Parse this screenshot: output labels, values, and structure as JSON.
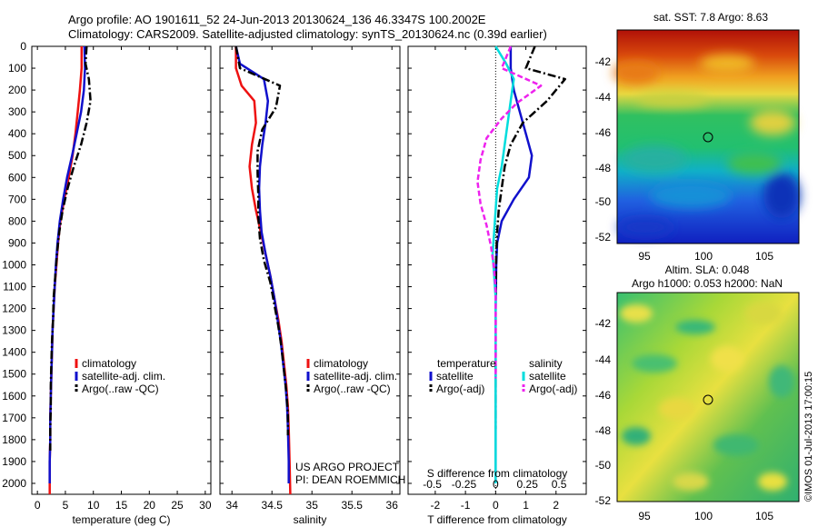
{
  "title": {
    "line1": "Argo profile: AO 1901611_52 24-Jun-2013 20130624_136 46.3347S 100.2002E",
    "line2": "Climatology: CARS2009. Satellite-adjusted climatology: synTS_20130624.nc (0.39d earlier)"
  },
  "colors": {
    "climatology": "#ee1111",
    "satellite_adj": "#1010cc",
    "argo": "#000000",
    "sal_satellite": "#00dddd",
    "sal_argo": "#ee22ee"
  },
  "chart_data": [
    {
      "type": "line",
      "name": "temperature-panel",
      "xlabel": "temperature (deg C)",
      "ylabel": "",
      "xlim": [
        -1,
        31
      ],
      "ylim": [
        2050,
        0
      ],
      "xticks": [
        0,
        5,
        10,
        15,
        20,
        25,
        30
      ],
      "yticks": [
        0,
        100,
        200,
        300,
        400,
        500,
        600,
        700,
        800,
        900,
        1000,
        1100,
        1200,
        1300,
        1400,
        1500,
        1600,
        1700,
        1800,
        1900,
        2000
      ],
      "legend": [
        "climatology",
        "satellite-adj. clim.",
        "Argo(..raw -QC)"
      ],
      "series": [
        {
          "name": "climatology",
          "style": "solid",
          "x": [
            7.9,
            7.9,
            7.6,
            7.2,
            6.8,
            6.3,
            5.6,
            4.8,
            4.1,
            3.7,
            3.4,
            3.1,
            2.9,
            2.7,
            2.6,
            2.5,
            2.4,
            2.3,
            2.3,
            2.2,
            2.2
          ],
          "y": [
            0,
            100,
            200,
            300,
            400,
            500,
            600,
            700,
            800,
            900,
            1000,
            1100,
            1200,
            1300,
            1400,
            1500,
            1600,
            1700,
            1800,
            1900,
            2050
          ]
        },
        {
          "name": "satellite-adj. clim.",
          "style": "solid",
          "x": [
            8.4,
            8.5,
            8.3,
            7.8,
            7.0,
            6.2,
            5.3,
            4.6,
            4.0,
            3.6,
            3.3,
            3.1,
            2.9,
            2.7,
            2.6,
            2.5,
            2.4,
            2.3,
            2.3,
            2.2,
            2.2
          ],
          "y": [
            0,
            100,
            200,
            300,
            400,
            500,
            600,
            700,
            800,
            900,
            1000,
            1100,
            1200,
            1300,
            1400,
            1500,
            1600,
            1700,
            1800,
            1900,
            2000
          ]
        },
        {
          "name": "Argo(..raw -QC)",
          "style": "dashdot",
          "x": [
            8.8,
            8.6,
            9.2,
            9.5,
            8.8,
            7.8,
            6.5,
            5.4,
            4.5,
            3.9,
            3.5,
            3.2,
            2.9,
            2.8,
            2.6,
            2.5,
            2.4,
            2.4,
            2.3,
            2.3
          ],
          "y": [
            0,
            80,
            150,
            250,
            350,
            450,
            550,
            650,
            750,
            850,
            950,
            1050,
            1150,
            1250,
            1350,
            1450,
            1550,
            1650,
            1750,
            1850
          ]
        }
      ]
    },
    {
      "type": "line",
      "name": "salinity-panel",
      "xlabel": "salinity",
      "xlim": [
        33.85,
        36.1
      ],
      "ylim": [
        2050,
        0
      ],
      "xticks": [
        34,
        34.5,
        35,
        35.5,
        36
      ],
      "legend": [
        "climatology",
        "satellite-adj. clim.",
        "Argo(..raw -QC)"
      ],
      "credits": [
        "US ARGO PROJECT",
        "PI: DEAN ROEMMICH"
      ],
      "series": [
        {
          "name": "climatology",
          "style": "solid",
          "x": [
            34.05,
            34.05,
            34.12,
            34.28,
            34.3,
            34.25,
            34.22,
            34.25,
            34.3,
            34.36,
            34.42,
            34.48,
            34.53,
            34.58,
            34.62,
            34.65,
            34.68,
            34.7,
            34.71,
            34.72,
            34.73
          ],
          "y": [
            0,
            100,
            180,
            250,
            350,
            450,
            550,
            650,
            750,
            850,
            950,
            1050,
            1150,
            1250,
            1350,
            1450,
            1550,
            1650,
            1750,
            1900,
            2050
          ]
        },
        {
          "name": "satellite-adj. clim.",
          "style": "solid",
          "x": [
            34.05,
            34.1,
            34.4,
            34.45,
            34.42,
            34.38,
            34.35,
            34.34,
            34.35,
            34.37,
            34.42,
            34.48,
            34.53,
            34.57,
            34.61,
            34.64,
            34.67,
            34.69,
            34.7,
            34.71,
            34.71
          ],
          "y": [
            0,
            80,
            150,
            250,
            350,
            450,
            550,
            650,
            750,
            850,
            950,
            1050,
            1150,
            1250,
            1350,
            1450,
            1550,
            1650,
            1750,
            1900,
            2000
          ]
        },
        {
          "name": "Argo(..raw -QC)",
          "style": "dashdot",
          "x": [
            34.05,
            34.1,
            34.6,
            34.55,
            34.38,
            34.32,
            34.32,
            34.33,
            34.33,
            34.35,
            34.4,
            34.48,
            34.53,
            34.58,
            34.62,
            34.65,
            34.68,
            34.7,
            34.7
          ],
          "y": [
            0,
            100,
            180,
            280,
            380,
            480,
            580,
            680,
            780,
            880,
            980,
            1080,
            1180,
            1280,
            1380,
            1480,
            1580,
            1680,
            1780
          ]
        }
      ]
    },
    {
      "type": "line",
      "name": "difference-panel",
      "xlabel": "T difference from climatology",
      "xlabel_top": "S difference from climatology",
      "xlim": [
        -2.9,
        3.0
      ],
      "ylim": [
        2050,
        0
      ],
      "xticks": [
        -2,
        -1,
        0,
        1,
        2
      ],
      "s_ticks": [
        -0.5,
        -0.25,
        0,
        0.25,
        0.5
      ],
      "legend_groups": [
        "temperature",
        "salinity"
      ],
      "legend": {
        "temperature": [
          "satellite",
          "Argo(-adj)"
        ],
        "salinity": [
          "satellite",
          "Argo(-adj)"
        ]
      },
      "series": [
        {
          "name": "temperature satellite",
          "style": "solid",
          "x": [
            0.5,
            0.5,
            0.6,
            0.8,
            1.0,
            1.2,
            1.1,
            0.6,
            0.2,
            0.05,
            0.02,
            0.01,
            0.0,
            0.0,
            0.0,
            0.0,
            0.0,
            0.0,
            0.0,
            0.0,
            0.0
          ],
          "y": [
            0,
            100,
            200,
            300,
            400,
            500,
            600,
            700,
            800,
            900,
            1000,
            1100,
            1200,
            1300,
            1400,
            1500,
            1600,
            1700,
            1800,
            1900,
            2000
          ]
        },
        {
          "name": "temperature Argo(-adj)",
          "style": "dashdot",
          "x": [
            1.3,
            1.0,
            2.3,
            1.7,
            0.9,
            0.5,
            0.3,
            0.2,
            0.1,
            0.05,
            0.02,
            0.01,
            0.0,
            0.0,
            0.0,
            0.0,
            0.0,
            0.0,
            0.0
          ],
          "y": [
            0,
            100,
            150,
            250,
            350,
            450,
            550,
            650,
            750,
            850,
            950,
            1050,
            1150,
            1250,
            1350,
            1450,
            1550,
            1650,
            1750
          ]
        },
        {
          "name": "salinity satellite",
          "style": "solid",
          "x": [
            0.0,
            0.35,
            0.6,
            0.5,
            0.4,
            0.3,
            0.2,
            0.05,
            0.0,
            -0.05,
            -0.1,
            -0.05,
            0.0,
            0.0,
            0.0,
            0.0,
            0.0,
            0.0,
            0.0,
            0.0,
            0.0
          ],
          "y": [
            0,
            80,
            150,
            250,
            350,
            450,
            550,
            650,
            750,
            850,
            950,
            1050,
            1150,
            1250,
            1350,
            1450,
            1550,
            1650,
            1750,
            1900,
            2000
          ]
        },
        {
          "name": "salinity Argo(-adj)",
          "style": "dashed",
          "x": [
            0.5,
            0.2,
            1.5,
            0.7,
            0.2,
            -0.3,
            -0.5,
            -0.6,
            -0.5,
            -0.3,
            -0.15,
            -0.05,
            0.0,
            0.0,
            0.0,
            0.0,
            0.0
          ],
          "y": [
            0,
            100,
            180,
            260,
            330,
            420,
            520,
            620,
            720,
            820,
            920,
            1020,
            1120,
            1220,
            1320,
            1420,
            1520
          ]
        }
      ]
    }
  ],
  "sst_map": {
    "title": "sat. SST: 7.8 Argo: 8.63",
    "yticks": [
      "-42",
      "-44",
      "-46",
      "-48",
      "-50",
      "-52"
    ],
    "xticks": [
      "95",
      "100",
      "105"
    ],
    "marker": {
      "lon": 100.2,
      "lat": -46.33
    }
  },
  "sla_map": {
    "title1": "Altim. SLA: 0.048",
    "title2": "Argo h1000: 0.053 h2000: NaN",
    "yticks": [
      "-42",
      "-44",
      "-46",
      "-48",
      "-50",
      "-52"
    ],
    "xticks": [
      "95",
      "100",
      "105"
    ],
    "marker": {
      "lon": 100.2,
      "lat": -46.33
    }
  },
  "stamp": "©IMOS 01-Jul-2013 17:00:15"
}
